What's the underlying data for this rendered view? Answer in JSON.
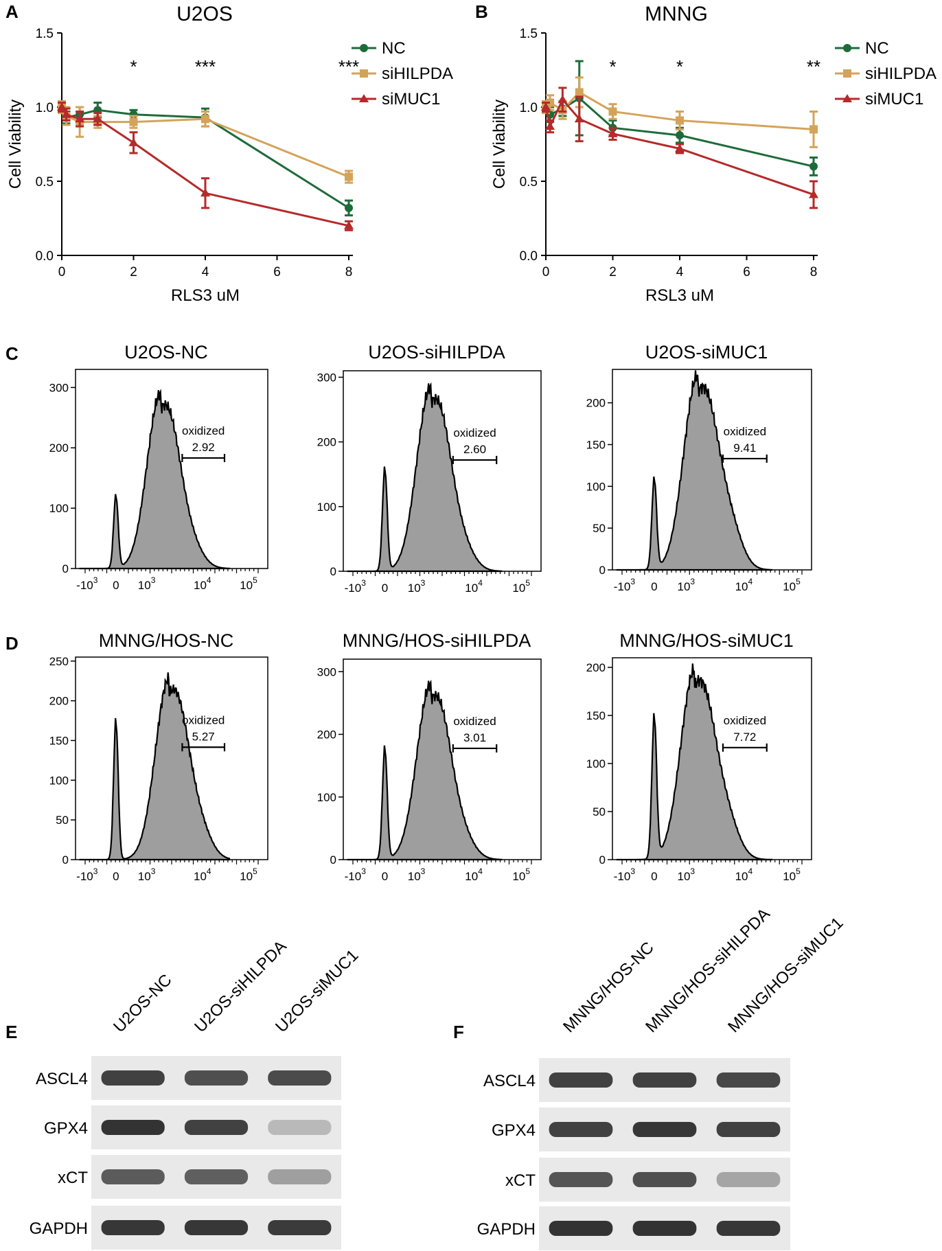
{
  "chart_data": [
    {
      "panel": "A",
      "type": "line",
      "title": "U2OS",
      "xlabel": "RLS3 uM",
      "ylabel": "Cell Viability",
      "xlim": [
        0,
        8
      ],
      "ylim": [
        0,
        1.5
      ],
      "xticks": [
        "0",
        "2",
        "4",
        "6",
        "8"
      ],
      "yticks": [
        "0.0",
        "0.5",
        "1.0",
        "1.5"
      ],
      "legend_position": "top-right",
      "x": [
        0,
        0.125,
        0.5,
        1,
        2,
        4,
        8
      ],
      "series": [
        {
          "name": "NC",
          "color": "#1e6b3a",
          "marker": "circle",
          "values": [
            1.0,
            0.93,
            0.95,
            0.98,
            0.95,
            0.93,
            0.32
          ],
          "errors": [
            0.02,
            0.04,
            0.05,
            0.05,
            0.03,
            0.06,
            0.05
          ]
        },
        {
          "name": "siHILPDA",
          "color": "#d4a35a",
          "marker": "square",
          "values": [
            1.0,
            0.94,
            0.9,
            0.9,
            0.9,
            0.92,
            0.53
          ],
          "errors": [
            0.04,
            0.06,
            0.1,
            0.04,
            0.04,
            0.05,
            0.04
          ]
        },
        {
          "name": "siMUC1",
          "color": "#b52a2a",
          "marker": "triangle",
          "values": [
            1.0,
            0.95,
            0.92,
            0.92,
            0.76,
            0.42,
            0.2
          ],
          "errors": [
            0.03,
            0.04,
            0.05,
            0.04,
            0.07,
            0.1,
            0.03
          ]
        }
      ],
      "annotations": [
        {
          "x": 2,
          "text": "*"
        },
        {
          "x": 4,
          "text": "***"
        },
        {
          "x": 8,
          "text": "***"
        }
      ]
    },
    {
      "panel": "B",
      "type": "line",
      "title": "MNNG",
      "xlabel": "RSL3 uM",
      "ylabel": "Cell Viability",
      "xlim": [
        0,
        8
      ],
      "ylim": [
        0,
        1.5
      ],
      "xticks": [
        "0",
        "2",
        "4",
        "6",
        "8"
      ],
      "yticks": [
        "0.0",
        "0.5",
        "1.0",
        "1.5"
      ],
      "legend_position": "top-right",
      "x": [
        0,
        0.125,
        0.5,
        1,
        2,
        4,
        8
      ],
      "series": [
        {
          "name": "NC",
          "color": "#1e6b3a",
          "marker": "circle",
          "values": [
            1.0,
            0.95,
            0.99,
            1.06,
            0.86,
            0.81,
            0.6
          ],
          "errors": [
            0.03,
            0.05,
            0.05,
            0.25,
            0.05,
            0.05,
            0.06
          ]
        },
        {
          "name": "siHILPDA",
          "color": "#d4a35a",
          "marker": "square",
          "values": [
            1.0,
            1.03,
            0.98,
            1.1,
            0.97,
            0.91,
            0.85
          ],
          "errors": [
            0.04,
            0.05,
            0.06,
            0.1,
            0.05,
            0.06,
            0.12
          ]
        },
        {
          "name": "siMUC1",
          "color": "#b52a2a",
          "marker": "triangle",
          "values": [
            1.0,
            0.87,
            1.05,
            0.92,
            0.82,
            0.72,
            0.41
          ],
          "errors": [
            0.03,
            0.04,
            0.08,
            0.15,
            0.04,
            0.03,
            0.09
          ]
        }
      ],
      "annotations": [
        {
          "x": 2,
          "text": "*"
        },
        {
          "x": 4,
          "text": "*"
        },
        {
          "x": 8,
          "text": "**"
        }
      ]
    }
  ],
  "flow_panels": [
    {
      "panel": "C",
      "title": "U2OS-NC",
      "gate_label": "oxidized",
      "gate_value": "2.92",
      "yticks": [
        0,
        100,
        200,
        300
      ],
      "ymax": 330,
      "small_peak": 120,
      "main_peak": 290,
      "main_center": 3.25,
      "shoulder": 0.08
    },
    {
      "panel": "",
      "title": "U2OS-siHILPDA",
      "gate_label": "oxidized",
      "gate_value": "2.60",
      "yticks": [
        0,
        100,
        200,
        300
      ],
      "ymax": 310,
      "small_peak": 158,
      "main_peak": 285,
      "main_center": 3.25,
      "shoulder": 0.08
    },
    {
      "panel": "",
      "title": "U2OS-siMUC1",
      "gate_label": "oxidized",
      "gate_value": "9.41",
      "yticks": [
        0,
        50,
        100,
        150,
        200
      ],
      "ymax": 240,
      "small_peak": 108,
      "main_peak": 232,
      "main_center": 3.2,
      "shoulder": 0.18
    },
    {
      "panel": "D",
      "title": "MNNG/HOS-NC",
      "gate_label": "oxidized",
      "gate_value": "5.27",
      "yticks": [
        0,
        50,
        100,
        150,
        200,
        250
      ],
      "ymax": 255,
      "small_peak": 175,
      "main_peak": 228,
      "main_center": 3.4,
      "shoulder": 0.12
    },
    {
      "panel": "",
      "title": "MNNG/HOS-siHILPDA",
      "gate_label": "oxidized",
      "gate_value": "3.01",
      "yticks": [
        0,
        100,
        200,
        300
      ],
      "ymax": 320,
      "small_peak": 178,
      "main_peak": 280,
      "main_center": 3.25,
      "shoulder": 0.08
    },
    {
      "panel": "",
      "title": "MNNG/HOS-siMUC1",
      "gate_label": "oxidized",
      "gate_value": "7.72",
      "yticks": [
        0,
        50,
        100,
        150,
        200
      ],
      "ymax": 210,
      "small_peak": 147,
      "main_peak": 198,
      "main_center": 3.15,
      "shoulder": 0.16
    }
  ],
  "flow_axis": {
    "tick_base": "10",
    "ticks": [
      {
        "mant": "-10",
        "exp": "3"
      },
      {
        "mant": "0",
        "exp": ""
      },
      {
        "mant": "10",
        "exp": "3"
      },
      {
        "mant": "10",
        "exp": "4"
      },
      {
        "mant": "10",
        "exp": "5"
      }
    ]
  },
  "western_blots": [
    {
      "panel": "E",
      "lanes": [
        "U2OS-NC",
        "U2OS-siHILPDA",
        "U2OS-siMUC1"
      ],
      "rows": [
        {
          "label": "ASCL4",
          "intensity": [
            0.85,
            0.78,
            0.8
          ]
        },
        {
          "label": "GPX4",
          "intensity": [
            0.92,
            0.85,
            0.25
          ]
        },
        {
          "label": "xCT",
          "intensity": [
            0.72,
            0.7,
            0.38
          ]
        },
        {
          "label": "GAPDH",
          "intensity": [
            0.9,
            0.9,
            0.88
          ]
        }
      ]
    },
    {
      "panel": "F",
      "lanes": [
        "MNNG/HOS-NC",
        "MNNG/HOS-siHILPDA",
        "MNNG/HOS-siMUC1"
      ],
      "rows": [
        {
          "label": "ASCL4",
          "intensity": [
            0.85,
            0.85,
            0.82
          ]
        },
        {
          "label": "GPX4",
          "intensity": [
            0.85,
            0.9,
            0.85
          ]
        },
        {
          "label": "xCT",
          "intensity": [
            0.75,
            0.78,
            0.35
          ]
        },
        {
          "label": "GAPDH",
          "intensity": [
            0.92,
            0.92,
            0.9
          ]
        }
      ]
    }
  ]
}
